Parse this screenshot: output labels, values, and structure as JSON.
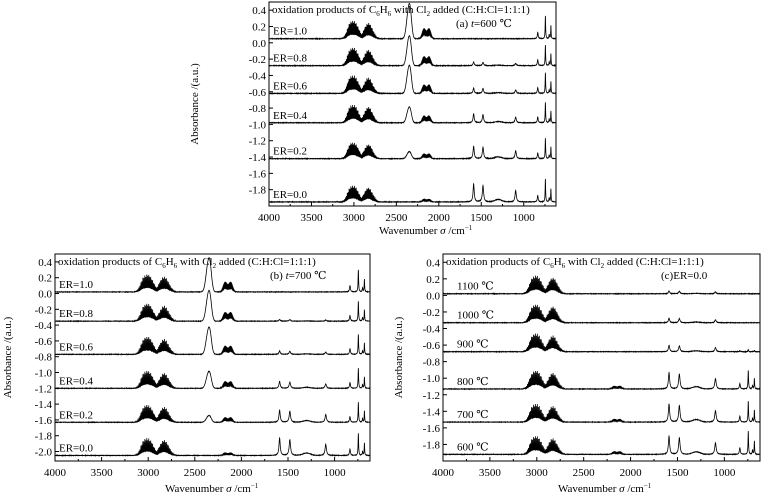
{
  "chart_data": [
    {
      "type": "line",
      "title_main": "oxidation products of C",
      "title_sub1": "6",
      "title_mid1": "H",
      "title_sub2": "6",
      "title_mid2": " with Cl",
      "title_sub3": "2",
      "title_tail": " added (C:H:Cl=1:1:1)",
      "panel_label": "(a) ",
      "panel_var": "t",
      "panel_value": "=600 ℃",
      "xlabel": "Wavenumber",
      "xunit_sym": "σ",
      "xunit": " /cm",
      "xunit_exp": "−1",
      "ylabel": "Absorbance /(a.u.)",
      "xlim": [
        4000,
        620
      ],
      "ylim": [
        -2.0,
        0.5
      ],
      "x_ticks": [
        4000,
        3500,
        3000,
        2500,
        2000,
        1500,
        1000
      ],
      "y_ticks": [
        0.4,
        0.2,
        0.0,
        -0.2,
        -0.4,
        -0.6,
        -0.8,
        -1.0,
        -1.2,
        -1.4,
        -1.6,
        -1.8
      ],
      "y_tick_labels": [
        "0.4",
        "0.2",
        "0.0",
        "-0.2",
        "-0.4",
        "-0.6",
        "-0.8",
        "-1.0",
        "-1.2",
        "-1.4",
        "-1.6",
        "-1.8"
      ],
      "series": [
        {
          "name": "ER=1.0",
          "baseline": 0.05,
          "co2": 1.0,
          "ch4": 1.0,
          "co": 1.0,
          "hcl": 1.0,
          "arom": 0.0
        },
        {
          "name": "ER=0.8",
          "baseline": -0.28,
          "co2": 0.85,
          "ch4": 1.0,
          "co": 0.9,
          "hcl": 0.9,
          "arom": 0.2
        },
        {
          "name": "ER=0.6",
          "baseline": -0.62,
          "co2": 0.8,
          "ch4": 1.0,
          "co": 0.85,
          "hcl": 0.9,
          "arom": 0.3
        },
        {
          "name": "ER=0.4",
          "baseline": -0.98,
          "co2": 0.45,
          "ch4": 1.0,
          "co": 0.7,
          "hcl": 0.9,
          "arom": 0.5
        },
        {
          "name": "ER=0.2",
          "baseline": -1.42,
          "co2": 0.2,
          "ch4": 0.9,
          "co": 0.5,
          "hcl": 0.9,
          "arom": 0.7
        },
        {
          "name": "ER=0.0",
          "baseline": -1.95,
          "co2": 0.0,
          "ch4": 0.9,
          "co": 0.3,
          "hcl": 1.0,
          "arom": 1.0
        }
      ]
    },
    {
      "type": "line",
      "title_main": "oxidation products of C",
      "title_sub1": "6",
      "title_mid1": "H",
      "title_sub2": "6",
      "title_mid2": " with Cl",
      "title_sub3": "2",
      "title_tail": " added (C:H:Cl=1:1:1)",
      "panel_label": "(b) ",
      "panel_var": "t",
      "panel_value": "=700 ℃",
      "xlabel": "Wavenumber",
      "xunit_sym": "σ",
      "xunit": " /cm",
      "xunit_exp": "−1",
      "ylabel": "Absorbance /(a.u.)",
      "xlim": [
        4000,
        620
      ],
      "ylim": [
        -2.12,
        0.5
      ],
      "x_ticks": [
        4000,
        3500,
        3000,
        2500,
        2000,
        1500,
        1000
      ],
      "y_ticks": [
        0.4,
        0.2,
        0.0,
        -0.2,
        -0.4,
        -0.6,
        -0.8,
        -1.0,
        -1.2,
        -1.4,
        -1.6,
        -1.8,
        -2.0
      ],
      "y_tick_labels": [
        "0.4",
        "0.2",
        "0.0",
        "-0.2",
        "-0.4",
        "-0.6",
        "-0.8",
        "-1.0",
        "-1.2",
        "-1.4",
        "-1.6",
        "-1.8",
        "-2.0"
      ],
      "series": [
        {
          "name": "ER=1.0",
          "baseline": 0.02,
          "co2": 1.0,
          "ch4": 1.0,
          "co": 1.0,
          "hcl": 1.0,
          "arom": 0.0
        },
        {
          "name": "ER=0.8",
          "baseline": -0.35,
          "co2": 0.9,
          "ch4": 1.0,
          "co": 0.9,
          "hcl": 0.9,
          "arom": 0.1
        },
        {
          "name": "ER=0.6",
          "baseline": -0.77,
          "co2": 0.8,
          "ch4": 1.0,
          "co": 0.85,
          "hcl": 0.9,
          "arom": 0.2
        },
        {
          "name": "ER=0.4",
          "baseline": -1.2,
          "co2": 0.5,
          "ch4": 1.0,
          "co": 0.7,
          "hcl": 0.9,
          "arom": 0.4
        },
        {
          "name": "ER=0.2",
          "baseline": -1.63,
          "co2": 0.2,
          "ch4": 1.0,
          "co": 0.5,
          "hcl": 0.9,
          "arom": 0.7
        },
        {
          "name": "ER=0.0",
          "baseline": -2.05,
          "co2": 0.0,
          "ch4": 1.0,
          "co": 0.3,
          "hcl": 1.0,
          "arom": 1.0
        }
      ]
    },
    {
      "type": "line",
      "title_main": "oxidation products of C",
      "title_sub1": "6",
      "title_mid1": "H",
      "title_sub2": "6",
      "title_mid2": " with Cl",
      "title_sub3": "2",
      "title_tail": " added (C:H:Cl=1:1:1)",
      "panel_label": "(c)",
      "panel_var": "",
      "panel_value": "ER=0.0",
      "xlabel": "Wavenumber",
      "xunit_sym": "σ",
      "xunit": " /cm",
      "xunit_exp": "−1",
      "ylabel": "Absorbance /(a.u.)",
      "xlim": [
        4000,
        620
      ],
      "ylim": [
        -2.0,
        0.5
      ],
      "x_ticks": [
        4000,
        3500,
        3000,
        2500,
        2000,
        1500,
        1000
      ],
      "y_ticks": [
        0.4,
        0.2,
        0.0,
        -0.2,
        -0.4,
        -0.6,
        -0.8,
        -1.0,
        -1.2,
        -1.4,
        -1.6,
        -1.8
      ],
      "y_tick_labels": [
        "0.4",
        "0.2",
        "0.0",
        "-0.2",
        "-0.4",
        "-0.6",
        "-0.8",
        "-1.0",
        "-1.2",
        "-1.4",
        "-1.6",
        "-1.8"
      ],
      "series": [
        {
          "name": "1100 ℃",
          "baseline": 0.02,
          "co2": 0.0,
          "ch4": 1.0,
          "co": 0.0,
          "hcl": 0.0,
          "arom": 0.15
        },
        {
          "name": "1000 ℃",
          "baseline": -0.33,
          "co2": 0.0,
          "ch4": 1.0,
          "co": 0.0,
          "hcl": 0.0,
          "arom": 0.25
        },
        {
          "name": "900 ℃",
          "baseline": -0.68,
          "co2": 0.0,
          "ch4": 1.0,
          "co": 0.0,
          "hcl": 0.1,
          "arom": 0.35
        },
        {
          "name": "800 ℃",
          "baseline": -1.13,
          "co2": 0.0,
          "ch4": 1.0,
          "co": 0.3,
          "hcl": 0.8,
          "arom": 0.9
        },
        {
          "name": "700 ℃",
          "baseline": -1.53,
          "co2": 0.0,
          "ch4": 1.0,
          "co": 0.3,
          "hcl": 0.9,
          "arom": 1.0
        },
        {
          "name": "600 ℃",
          "baseline": -1.92,
          "co2": 0.0,
          "ch4": 1.0,
          "co": 0.3,
          "hcl": 1.0,
          "arom": 1.0
        }
      ]
    }
  ]
}
